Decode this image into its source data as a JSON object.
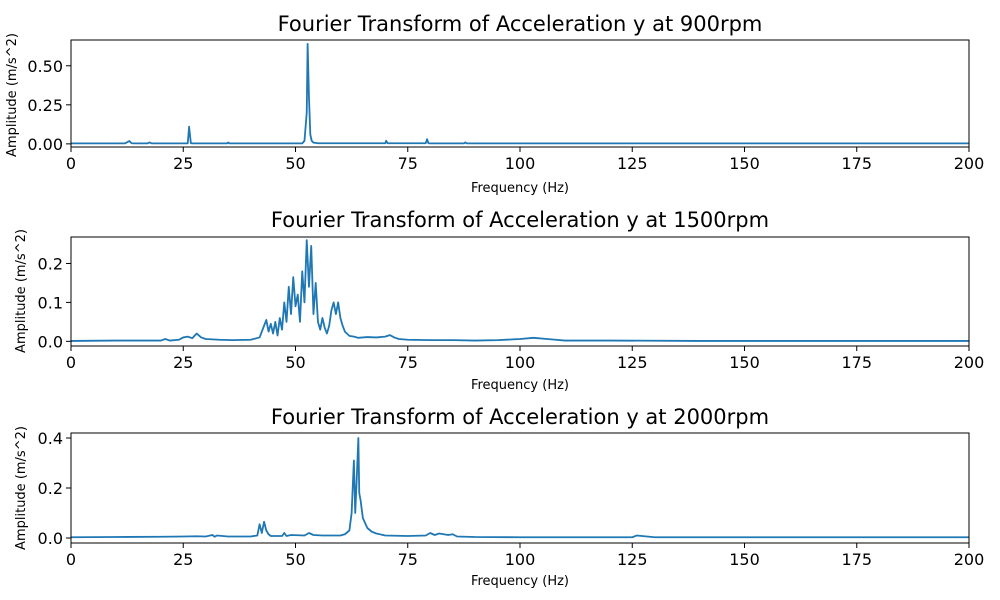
{
  "colors": {
    "series": "#1f77b4",
    "axes": "#000000",
    "background": "#ffffff"
  },
  "chart_data": [
    {
      "type": "line",
      "title": "Fourier Transform of Acceleration y at 900rpm",
      "xlabel": "Frequency (Hz)",
      "ylabel": "Amplitude (m/s^2)",
      "xlim": [
        0,
        200
      ],
      "ylim": [
        -0.02,
        0.665
      ],
      "xticks": [
        0,
        25,
        50,
        75,
        100,
        125,
        150,
        175,
        200
      ],
      "xtick_labels": [
        "0",
        "25",
        "50",
        "75",
        "100",
        "125",
        "150",
        "175",
        "200"
      ],
      "yticks": [
        0.0,
        0.25,
        0.5
      ],
      "ytick_labels": [
        "0.00",
        "0.25",
        "0.50"
      ],
      "grid": false,
      "series": [
        {
          "x": [
            0,
            12,
            13,
            13.5,
            14,
            17,
            17.5,
            18,
            26,
            26.3,
            26.7,
            27,
            34.8,
            35,
            35.3,
            51.5,
            52,
            52.5,
            52.7,
            53,
            53.3,
            53.6,
            54,
            55,
            60,
            70,
            70.2,
            70.5,
            71,
            76,
            79,
            79.3,
            79.6,
            80,
            87.5,
            87.8,
            88.2,
            100,
            125,
            150,
            175,
            200
          ],
          "y": [
            0.003,
            0.003,
            0.018,
            0.004,
            0.003,
            0.003,
            0.009,
            0.003,
            0.003,
            0.11,
            0.004,
            0.003,
            0.003,
            0.009,
            0.003,
            0.003,
            0.02,
            0.2,
            0.64,
            0.3,
            0.06,
            0.02,
            0.008,
            0.004,
            0.004,
            0.004,
            0.02,
            0.004,
            0.004,
            0.004,
            0.004,
            0.03,
            0.004,
            0.003,
            0.003,
            0.009,
            0.003,
            0.003,
            0.003,
            0.003,
            0.003,
            0.003
          ]
        }
      ]
    },
    {
      "type": "line",
      "title": "Fourier Transform of Acceleration y at 1500rpm",
      "xlabel": "Frequency (Hz)",
      "ylabel": "Amplitude (m/s^2)",
      "xlim": [
        0,
        200
      ],
      "ylim": [
        -0.012,
        0.268
      ],
      "xticks": [
        0,
        25,
        50,
        75,
        100,
        125,
        150,
        175,
        200
      ],
      "xtick_labels": [
        "0",
        "25",
        "50",
        "75",
        "100",
        "125",
        "150",
        "175",
        "200"
      ],
      "yticks": [
        0.0,
        0.1,
        0.2
      ],
      "ytick_labels": [
        "0.0",
        "0.1",
        "0.2"
      ],
      "grid": false,
      "series": [
        {
          "x": [
            0,
            10,
            20,
            21,
            22,
            24,
            25,
            26,
            27,
            28,
            29,
            30,
            33,
            36,
            40,
            42,
            43,
            43.5,
            44,
            44.5,
            45,
            45.5,
            46,
            46.5,
            47,
            47.5,
            48,
            48.5,
            49,
            49.5,
            50,
            50.5,
            51,
            51.5,
            52,
            52.5,
            53,
            53.5,
            54,
            54.5,
            55,
            55.5,
            56,
            56.5,
            57,
            57.5,
            58,
            58.5,
            59,
            59.5,
            60,
            60.5,
            61,
            62,
            63,
            64,
            66,
            68,
            70,
            71,
            72,
            73,
            75,
            80,
            85,
            90,
            95,
            100,
            103,
            106,
            108,
            110,
            120,
            140,
            160,
            180,
            200
          ],
          "y": [
            0.001,
            0.002,
            0.002,
            0.006,
            0.002,
            0.004,
            0.01,
            0.012,
            0.008,
            0.02,
            0.01,
            0.006,
            0.004,
            0.003,
            0.004,
            0.01,
            0.04,
            0.055,
            0.025,
            0.045,
            0.02,
            0.05,
            0.015,
            0.06,
            0.03,
            0.1,
            0.05,
            0.14,
            0.07,
            0.165,
            0.09,
            0.12,
            0.05,
            0.18,
            0.1,
            0.26,
            0.14,
            0.245,
            0.07,
            0.15,
            0.05,
            0.03,
            0.06,
            0.035,
            0.02,
            0.04,
            0.08,
            0.1,
            0.07,
            0.1,
            0.06,
            0.04,
            0.025,
            0.014,
            0.012,
            0.009,
            0.011,
            0.01,
            0.012,
            0.016,
            0.01,
            0.006,
            0.004,
            0.003,
            0.003,
            0.002,
            0.003,
            0.006,
            0.009,
            0.006,
            0.004,
            0.002,
            0.002,
            0.001,
            0.001,
            0.001,
            0.001
          ]
        }
      ]
    },
    {
      "type": "line",
      "title": "Fourier Transform of Acceleration y at 2000rpm",
      "xlabel": "Frequency (Hz)",
      "ylabel": "Amplitude (m/s^2)",
      "xlim": [
        0,
        200
      ],
      "ylim": [
        -0.02,
        0.42
      ],
      "xticks": [
        0,
        25,
        50,
        75,
        100,
        125,
        150,
        175,
        200
      ],
      "xtick_labels": [
        "0",
        "25",
        "50",
        "75",
        "100",
        "125",
        "150",
        "175",
        "200"
      ],
      "yticks": [
        0.0,
        0.2,
        0.4
      ],
      "ytick_labels": [
        "0.0",
        "0.2",
        "0.4"
      ],
      "grid": false,
      "series": [
        {
          "x": [
            0,
            10,
            20,
            25,
            28,
            30,
            31.5,
            32,
            32.5,
            35,
            40,
            41.5,
            42,
            42.5,
            43,
            43.5,
            44,
            44.5,
            47,
            47.5,
            48,
            49,
            52,
            53,
            54,
            56,
            60,
            61,
            62,
            62.5,
            63,
            63.3,
            63.6,
            64,
            64.2,
            64.5,
            65,
            65.5,
            66,
            67,
            68,
            70,
            75,
            79,
            80,
            81,
            82,
            84,
            85,
            86,
            90,
            100,
            120,
            125,
            126,
            130,
            150,
            175,
            200
          ],
          "y": [
            0.003,
            0.004,
            0.005,
            0.006,
            0.007,
            0.006,
            0.012,
            0.005,
            0.01,
            0.006,
            0.006,
            0.01,
            0.055,
            0.02,
            0.065,
            0.03,
            0.015,
            0.008,
            0.008,
            0.02,
            0.008,
            0.012,
            0.01,
            0.02,
            0.012,
            0.01,
            0.01,
            0.015,
            0.03,
            0.1,
            0.31,
            0.1,
            0.22,
            0.4,
            0.18,
            0.15,
            0.08,
            0.06,
            0.04,
            0.025,
            0.018,
            0.01,
            0.008,
            0.01,
            0.02,
            0.012,
            0.018,
            0.012,
            0.015,
            0.006,
            0.004,
            0.003,
            0.003,
            0.003,
            0.01,
            0.003,
            0.003,
            0.003,
            0.003
          ]
        }
      ]
    }
  ]
}
